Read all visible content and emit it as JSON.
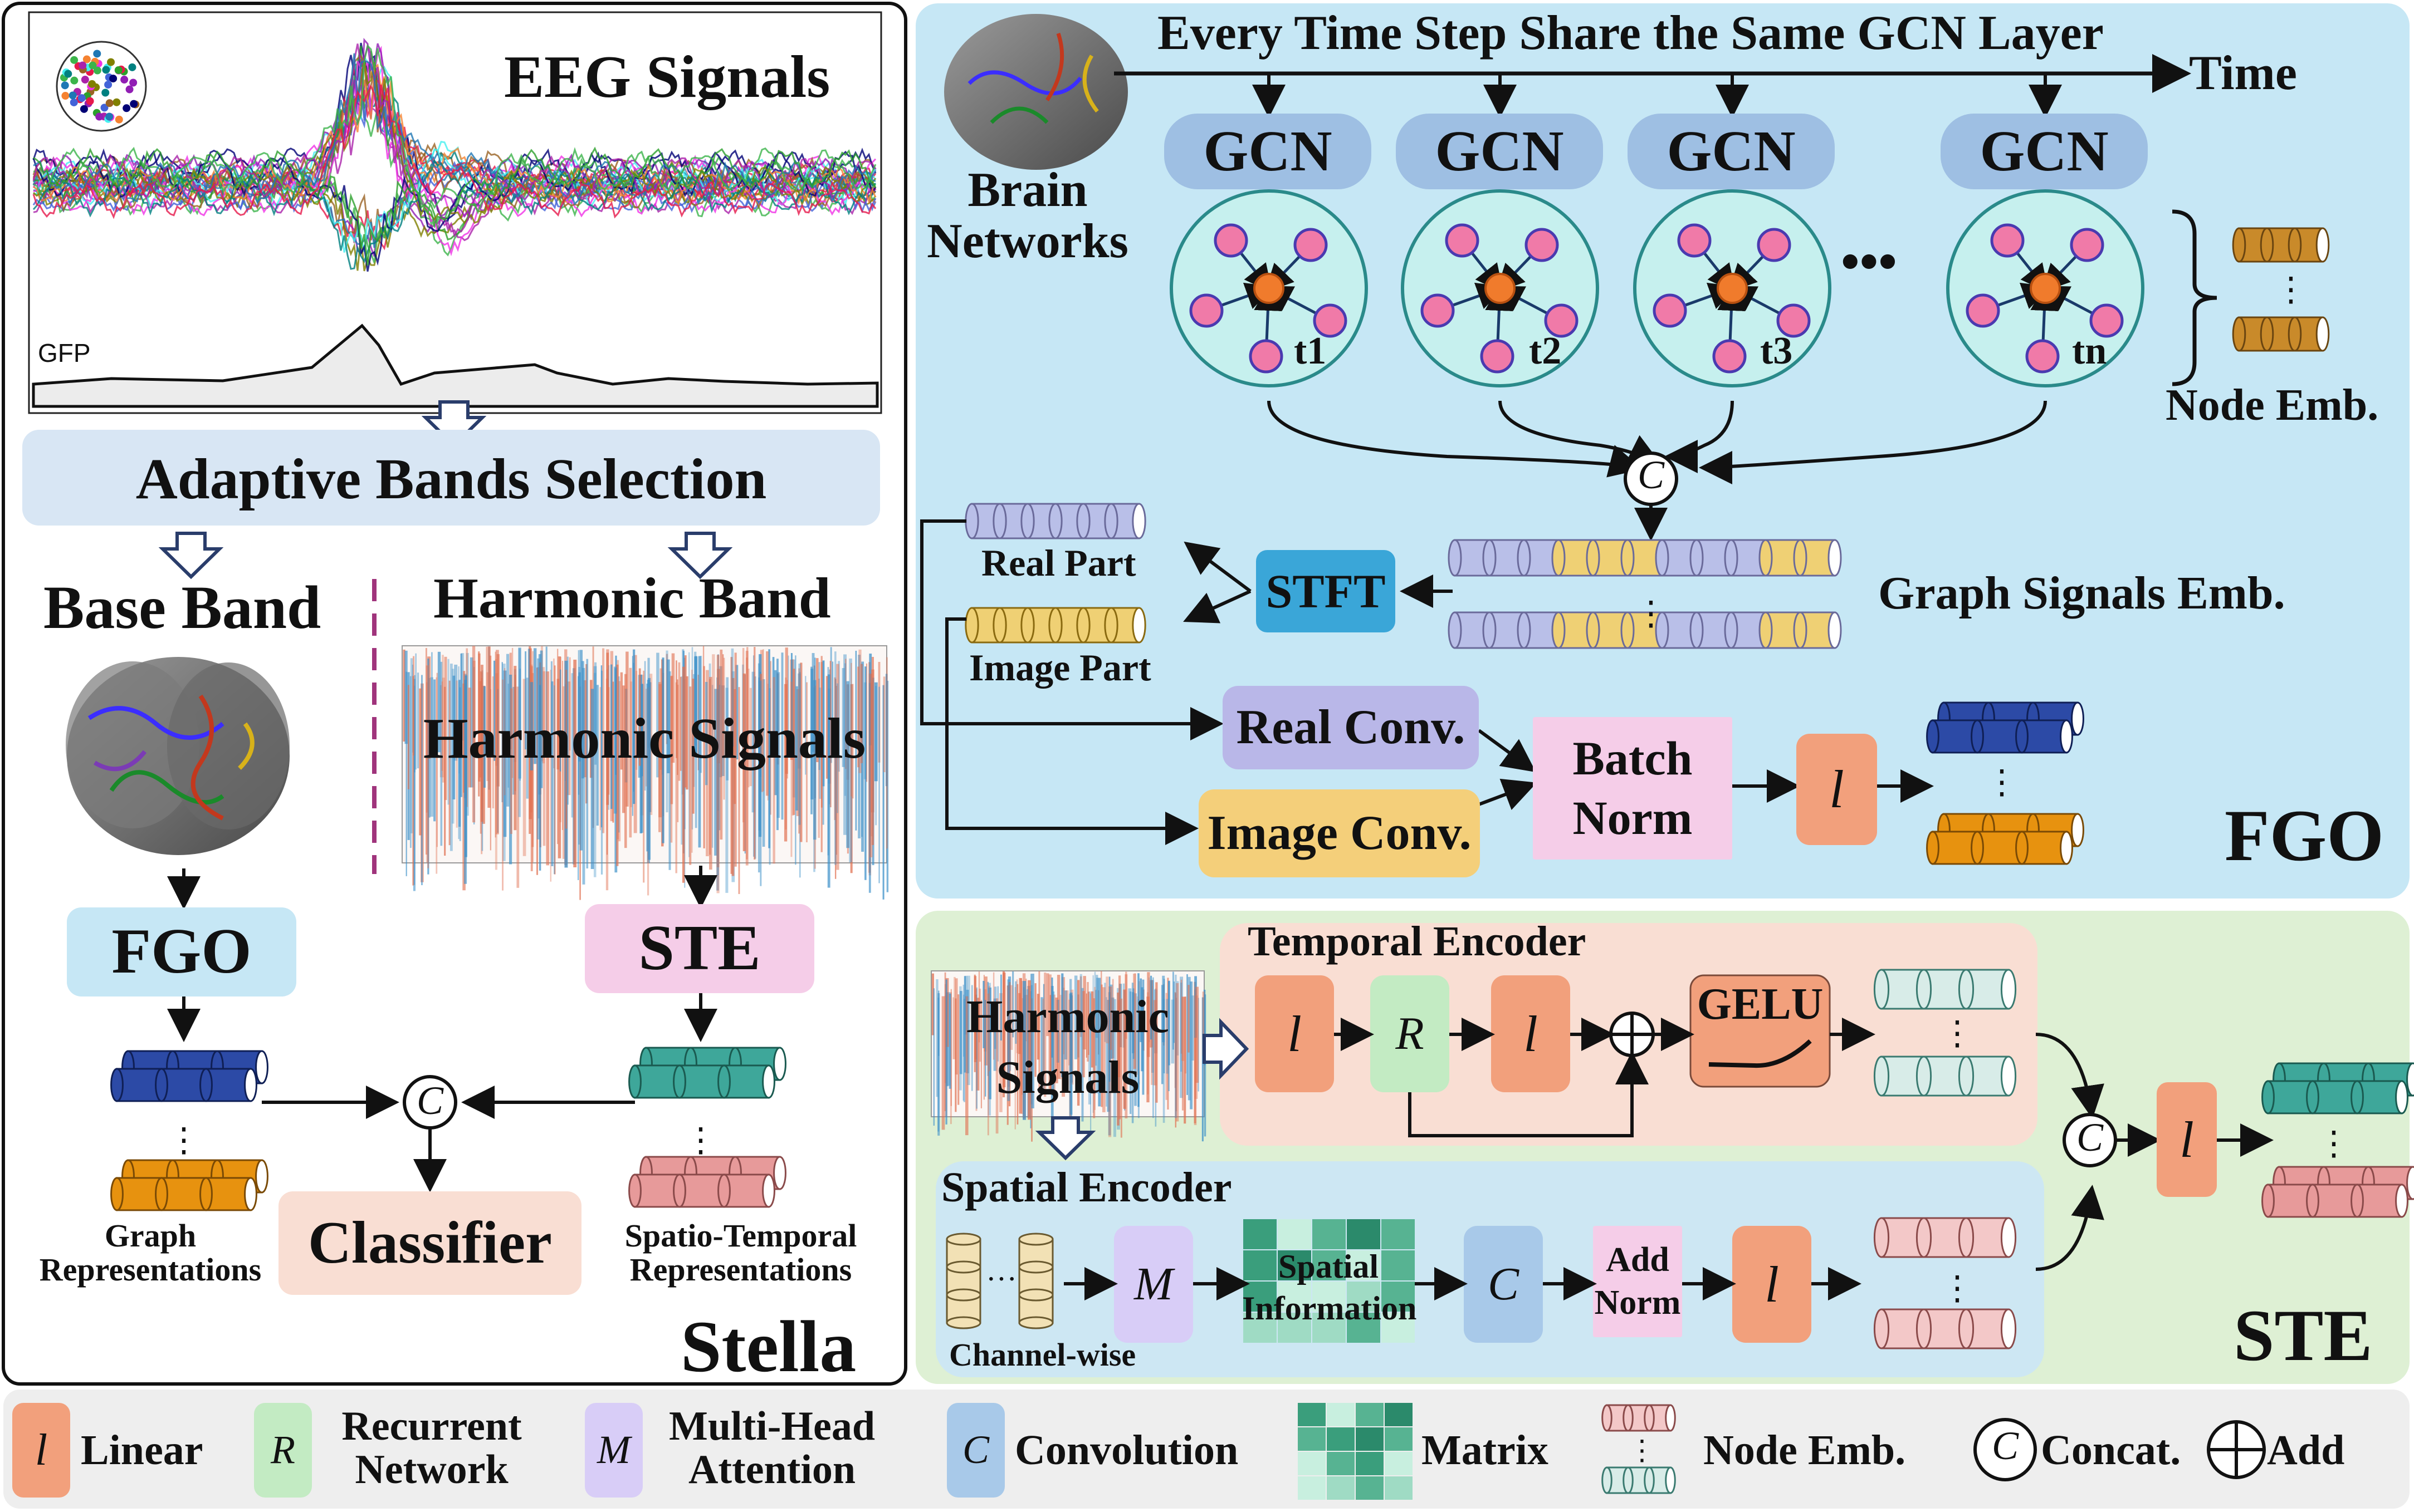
{
  "stella": {
    "eeg_title": "EEG Signals",
    "gfp": "GFP",
    "adaptive": "Adaptive Bands Selection",
    "base_band": "Base Band",
    "harmonic_band": "Harmonic Band",
    "harmonic_signals": "Harmonic Signals",
    "fgo": "FGO",
    "ste": "STE",
    "classifier": "Classifier",
    "graph_rep": "Graph\nRepresentations",
    "st_rep": "Spatio-Temporal\nRepresentations",
    "name": "Stella"
  },
  "fgo": {
    "title": "Every Time Step Share the Same GCN Layer",
    "time": "Time",
    "brain_networks": "Brain\nNetworks",
    "gcn": [
      "GCN",
      "GCN",
      "GCN",
      "GCN"
    ],
    "steps": [
      "t1",
      "t2",
      "t3",
      "tn"
    ],
    "dots": "•••",
    "node_emb": "Node Emb.",
    "concat": "C",
    "real_part": "Real Part",
    "image_part": "Image Part",
    "stft": "STFT",
    "graph_signals": "Graph Signals Emb.",
    "real_conv": "Real Conv.",
    "image_conv": "Image Conv.",
    "batch_norm": "Batch\nNorm",
    "linear": "l",
    "name": "FGO"
  },
  "ste": {
    "temporal": "Temporal Encoder",
    "harmonic_signals": "Harmonic\nSignals",
    "l": "l",
    "r": "R",
    "gelu": "GELU",
    "spatial": "Spatial Encoder",
    "m": "M",
    "spatial_info": "Spatial\nInformation",
    "c": "C",
    "add_norm": "Add\nNorm",
    "channel_wise": "Channel-wise",
    "concat": "C",
    "name": "STE"
  },
  "legend": {
    "linear_sym": "l",
    "linear": "Linear",
    "recurrent_sym": "R",
    "recurrent": "Recurrent\nNetwork",
    "mha_sym": "M",
    "mha": "Multi-Head\nAttention",
    "conv_sym": "C",
    "conv": "Convolution",
    "matrix": "Matrix",
    "node_emb": "Node Emb.",
    "concat_sym": "C",
    "concat": "Concat.",
    "add": "Add"
  },
  "colors": {
    "fgo_bg": "#c6e7f5",
    "ste_bg": "#def0d4",
    "temporal_bg": "#f9ded3",
    "spatial_bg": "#cde7f3",
    "linear": "#f2a07c",
    "recurrent": "#c3ebc3",
    "mha": "#d8cdf7",
    "conv": "#a8c9e9",
    "gcn": "#9ebfe3",
    "node_pink": "#f07aa8",
    "node_center": "#f07b2c",
    "blue_cyl": "#2c4aa6",
    "orange_cyl": "#e7920f",
    "teal_cyl": "#3ea79a",
    "pink_cyl": "#e79a9a",
    "lavender_cyl": "#b9bfe8",
    "yellow_cyl": "#efd074"
  }
}
